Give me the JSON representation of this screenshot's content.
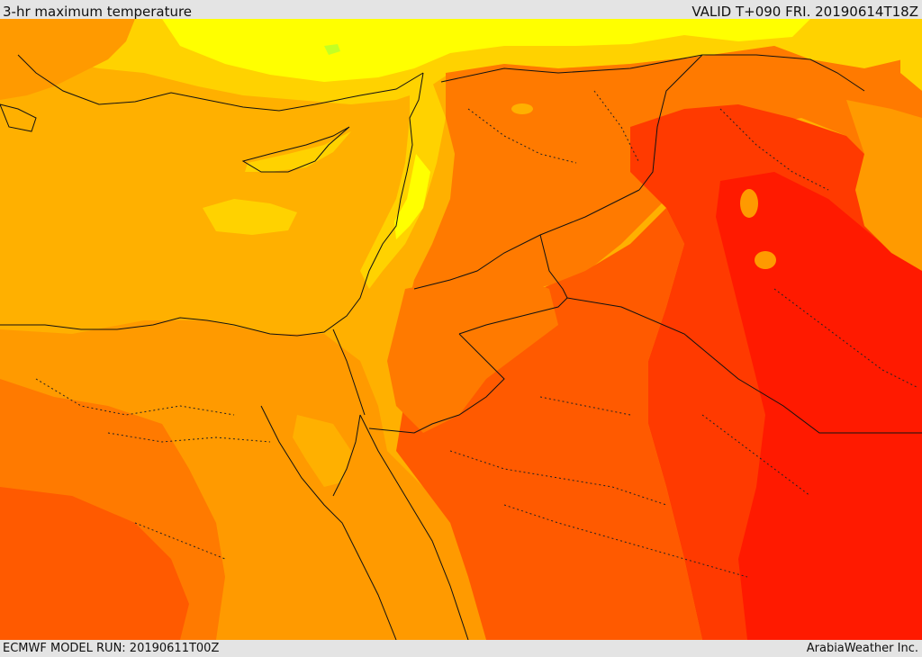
{
  "header": {
    "title": "3-hr maximum temperature",
    "valid": "VALID T+090 FRI. 20190614T18Z"
  },
  "footer": {
    "model_run": "ECMWF MODEL RUN: 20190611T00Z",
    "credit": "ArabiaWeather Inc."
  },
  "map": {
    "field": "3-hr maximum temperature",
    "colors": {
      "sea": "#ffb000",
      "light_yellow": "#ffff00",
      "yellow": "#ffd200",
      "orange_light": "#ff9a00",
      "orange": "#ff7a00",
      "orange_red": "#ff5a00",
      "red_orange": "#ff3a00",
      "red": "#ff1a00",
      "green_trace": "#aaff33"
    }
  }
}
